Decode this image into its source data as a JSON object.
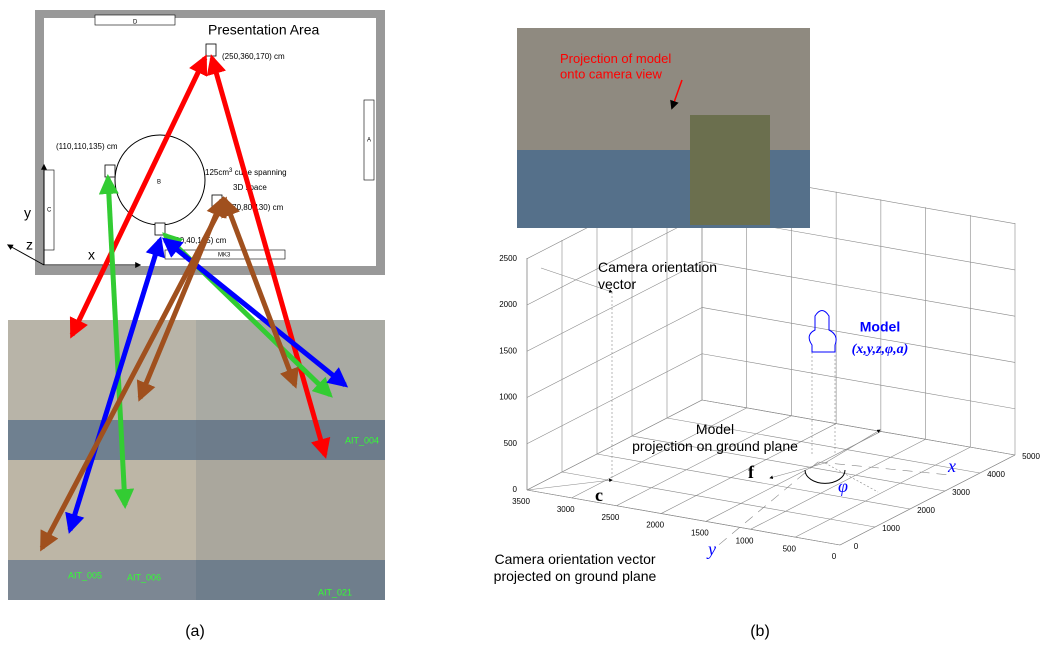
{
  "panel_a": {
    "caption": "(a)",
    "floorplan": {
      "area_title": "Presentation Area",
      "cam_top": "(250,360,170) cm",
      "cam_left": "(110,110,135) cm",
      "cube_line1": "125cm",
      "cube_sup": "3",
      "cube_line1b": " cube spanning",
      "cube_line2": "3D space",
      "cam_right": "(270,80,130) cm",
      "cam_bottom": "(300,40,135) cm",
      "door": "D",
      "wall_a": "A",
      "table": "B",
      "wall_c": "C",
      "bar": "MK3",
      "axis_x": "x",
      "axis_y": "y",
      "axis_z": "z"
    },
    "views": [
      "AIT_004",
      "AIT_005",
      "AIT_006",
      "AIT_021"
    ]
  },
  "panel_b": {
    "caption": "(b)",
    "projection_label": "Projection of model onto camera view",
    "camera_vector": "Camera orientation vector",
    "model": "Model",
    "model_params": "(x,y,z,φ,a)",
    "model_projection": "Model projection on ground plane",
    "camera_vector_ground": "Camera orientation vector projected on ground plane",
    "c": "c",
    "f": "f",
    "x": "x",
    "y": "y",
    "phi": "φ",
    "z_ticks": [
      "0",
      "500",
      "1000",
      "1500",
      "2000",
      "2500"
    ],
    "front_ticks": [
      "3500",
      "3000",
      "2500",
      "2000",
      "1500",
      "1000",
      "500",
      "0"
    ],
    "side_ticks": [
      "0",
      "1000",
      "2000",
      "3000",
      "4000",
      "5000"
    ]
  }
}
